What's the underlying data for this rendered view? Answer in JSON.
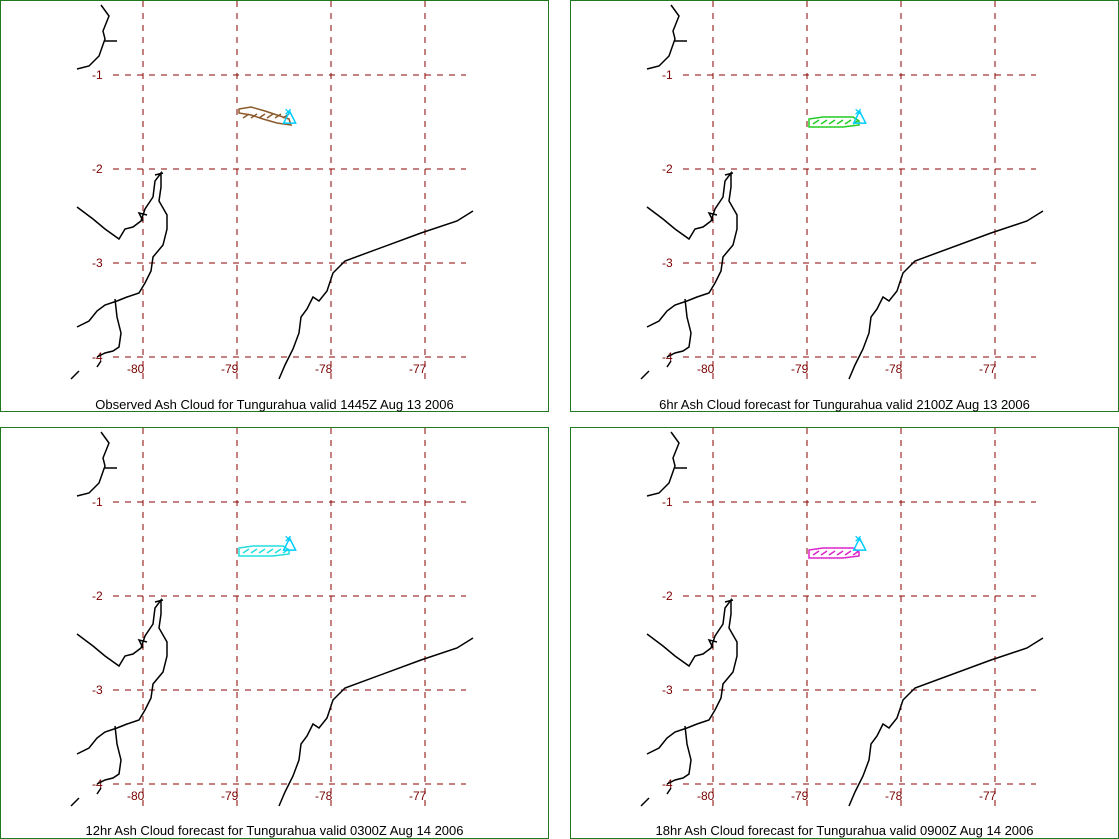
{
  "panels": [
    {
      "caption": "Observed Ash Cloud for Tungurahua valid 1445Z Aug 13 2006",
      "cloud_color": "#8b5a2b"
    },
    {
      "caption": "6hr Ash Cloud forecast for Tungurahua valid 2100Z Aug 13 2006",
      "cloud_color": "#22cc22"
    },
    {
      "caption": "12hr Ash Cloud forecast for Tungurahua valid 0300Z Aug 14 2006",
      "cloud_color": "#22dddd"
    },
    {
      "caption": "18hr Ash Cloud forecast for Tungurahua valid 0900Z Aug 14 2006",
      "cloud_color": "#dd22cc"
    }
  ],
  "map": {
    "lat_labels": [
      "-1",
      "-2",
      "-3",
      "-4"
    ],
    "lon_labels": [
      "-80",
      "-79",
      "-78",
      "-77"
    ],
    "grid_color": "#8b0000",
    "coast_color": "#000000",
    "volcano_marker_color": "#00ccff",
    "volcano_lon": -78.44,
    "volcano_lat": -1.47
  }
}
